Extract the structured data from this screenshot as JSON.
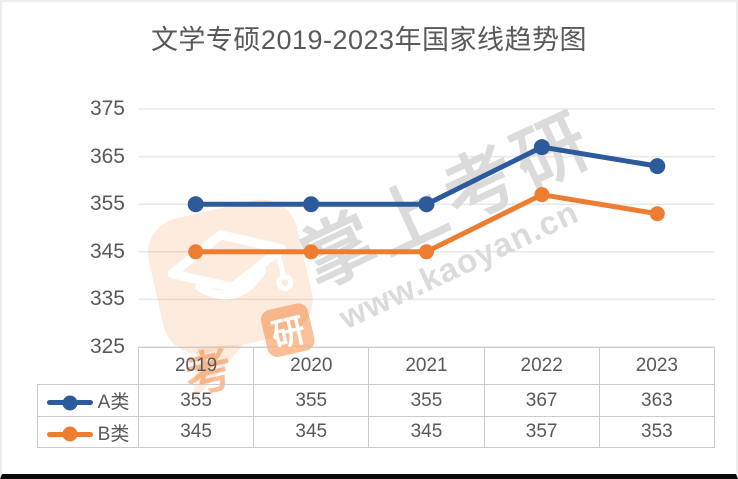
{
  "watermark": {
    "brand_text": "掌上考研",
    "url_text": "www.kaoyan.cn",
    "logo_char_kao": "考",
    "logo_char_yan": "研",
    "logo_color": "#f08034",
    "text_color": "#dbdbdb"
  },
  "axis": {
    "y_ticks": [
      "375",
      "365",
      "355",
      "345",
      "335",
      "325"
    ]
  },
  "chart_data": {
    "type": "line",
    "title": "文学专硕2019-2023年国家线趋势图",
    "categories": [
      "2019",
      "2020",
      "2021",
      "2022",
      "2023"
    ],
    "series": [
      {
        "name": "A类",
        "color": "#2d5a9b",
        "marker_r": 8,
        "values": [
          355,
          355,
          355,
          367,
          363
        ]
      },
      {
        "name": "B类",
        "color": "#ed7d31",
        "marker_r": 7.5,
        "values": [
          345,
          345,
          345,
          357,
          353
        ]
      }
    ],
    "ylim": [
      325,
      375
    ],
    "y_tick_step": 10,
    "grid": true,
    "grid_color": "#e8e8e8",
    "text_color": "#595959",
    "legend_position": "table-left"
  }
}
